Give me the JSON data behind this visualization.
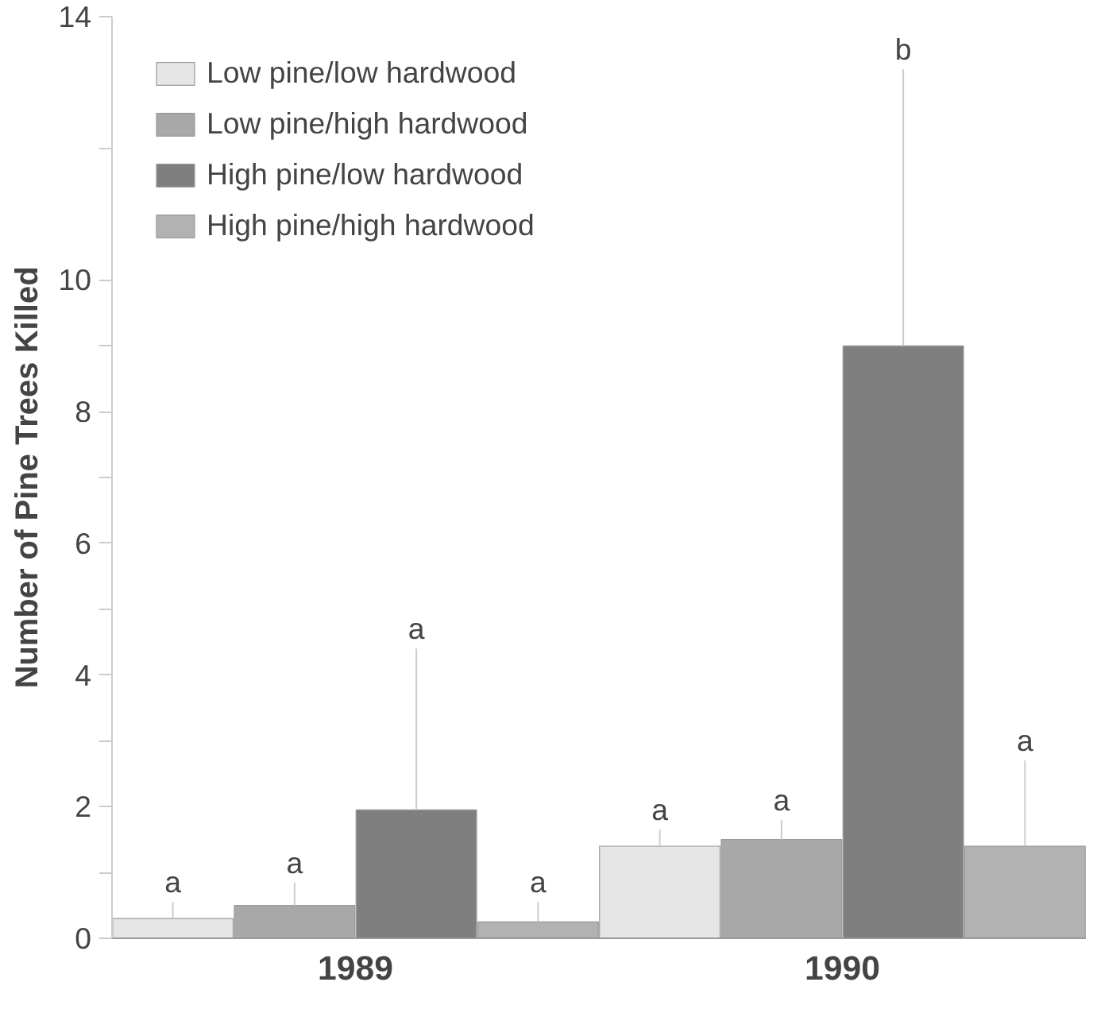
{
  "chart_data": {
    "type": "bar",
    "ylabel": "Number of Pine Trees Killed",
    "categories": [
      "1989",
      "1990"
    ],
    "series": [
      {
        "name": "Low pine/low hardwood",
        "color": "#e6e6e6",
        "values": [
          0.3,
          1.4
        ],
        "errors": [
          [
            0.3,
            0.55
          ],
          [
            1.4,
            1.65
          ]
        ]
      },
      {
        "name": "Low pine/high hardwood",
        "color": "#a8a8a8",
        "values": [
          0.5,
          1.5
        ],
        "errors": [
          [
            0.5,
            0.85
          ],
          [
            1.5,
            1.8
          ]
        ]
      },
      {
        "name": "High pine/low hardwood",
        "color": "#7f7f7f",
        "values": [
          1.95,
          9.0
        ],
        "errors": [
          [
            1.95,
            4.4
          ],
          [
            9.0,
            13.2
          ]
        ]
      },
      {
        "name": "High pine/high hardwood",
        "color": "#b2b2b2",
        "values": [
          0.25,
          1.4
        ],
        "errors": [
          [
            0.25,
            0.55
          ],
          [
            1.4,
            2.7
          ]
        ]
      }
    ],
    "annotations": [
      {
        "text": "a",
        "y": 0.55
      },
      {
        "text": "a",
        "y": 0.85
      },
      {
        "text": "a",
        "y": 4.4
      },
      {
        "text": "a",
        "y": 0.55
      },
      {
        "text": "a",
        "y": 1.65
      },
      {
        "text": "a",
        "y": 1.8
      },
      {
        "text": "b",
        "y": 13.2
      },
      {
        "text": "a",
        "y": 2.7
      }
    ],
    "ylim": [
      0,
      14
    ],
    "yticks": [
      0,
      {
        "value": 1,
        "label": null
      },
      2,
      {
        "value": 3,
        "label": null
      },
      4,
      {
        "value": 5,
        "label": null
      },
      6,
      {
        "value": 7,
        "label": null
      },
      8,
      {
        "value": 9,
        "label": null
      },
      10,
      {
        "value": 12,
        "label": null
      },
      14
    ],
    "grid": false,
    "legend": "top left"
  }
}
